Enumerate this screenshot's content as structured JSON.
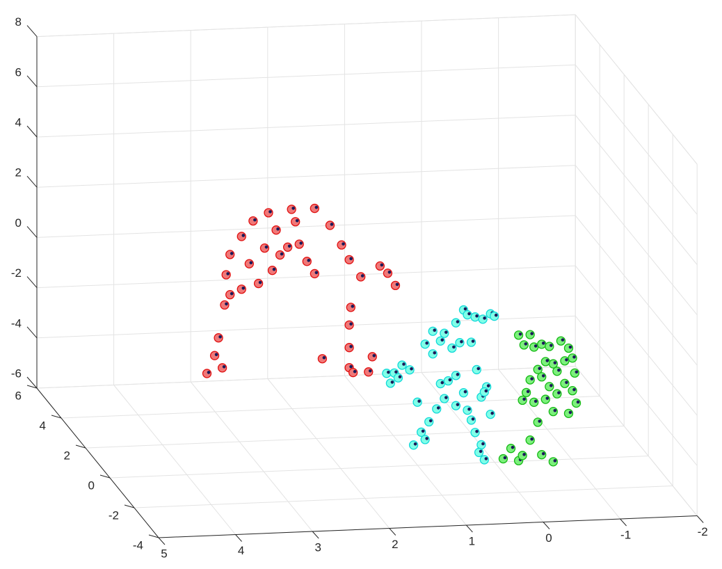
{
  "chart_data": {
    "type": "scatter",
    "title": "",
    "xlabel": "",
    "ylabel": "",
    "zlabel": "",
    "grid": true,
    "box": "open",
    "x_ticks": [
      "-2",
      "-1",
      "0",
      "1",
      "2",
      "3",
      "4",
      "5"
    ],
    "y_ticks": [
      "-4",
      "-2",
      "0",
      "2",
      "4",
      "6"
    ],
    "z_ticks": [
      "-6",
      "-4",
      "-2",
      "0",
      "2",
      "4",
      "6",
      "8"
    ],
    "xlim": [
      -2,
      5
    ],
    "ylim": [
      -4,
      6
    ],
    "zlim": [
      -6,
      8
    ],
    "colors": {
      "red_fill": "#f07878",
      "red_edge": "#e01010",
      "cyan_fill": "#80ffe8",
      "cyan_edge": "#10d8d8",
      "green_fill": "#7cf07c",
      "green_edge": "#14b814",
      "inner_marker": "#1a1a5a"
    },
    "series": [
      {
        "color": "red",
        "points": [
          [
            3.55,
            -2.6,
            5.6
          ],
          [
            3.35,
            -2.6,
            5.9
          ],
          [
            3.05,
            -2.6,
            6.0
          ],
          [
            2.75,
            -2.6,
            6.0
          ],
          [
            3.7,
            -2.6,
            5.0
          ],
          [
            3.85,
            -2.6,
            4.3
          ],
          [
            3.9,
            -2.6,
            3.5
          ],
          [
            3.85,
            -2.6,
            2.7
          ],
          [
            3.92,
            -2.6,
            2.3
          ],
          [
            4.0,
            -2.6,
            1.0
          ],
          [
            4.05,
            -2.6,
            0.3
          ],
          [
            4.15,
            -2.6,
            -0.4
          ],
          [
            3.25,
            -2.6,
            5.2
          ],
          [
            3.4,
            -2.6,
            4.5
          ],
          [
            3.6,
            -2.6,
            3.9
          ],
          [
            3.7,
            -2.6,
            2.9
          ],
          [
            3.1,
            -2.6,
            4.5
          ],
          [
            3.2,
            -2.6,
            4.2
          ],
          [
            3.3,
            -2.6,
            3.6
          ],
          [
            3.48,
            -2.6,
            3.1
          ],
          [
            3.0,
            -2.6,
            5.5
          ],
          [
            2.95,
            -2.6,
            4.6
          ],
          [
            2.85,
            -2.6,
            3.9
          ],
          [
            2.75,
            -2.6,
            3.4
          ],
          [
            2.55,
            -2.6,
            5.3
          ],
          [
            2.4,
            -2.6,
            4.5
          ],
          [
            2.3,
            -2.6,
            3.9
          ],
          [
            2.15,
            -2.6,
            3.2
          ],
          [
            2.28,
            -2.6,
            2.0
          ],
          [
            2.3,
            -2.6,
            1.3
          ],
          [
            2.3,
            -2.6,
            0.4
          ],
          [
            2.3,
            -2.6,
            -0.4
          ],
          [
            2.65,
            -2.6,
            0.0
          ],
          [
            2.0,
            -2.6,
            0.0
          ],
          [
            2.05,
            -2.6,
            -0.6
          ],
          [
            1.8,
            -2.6,
            3.3
          ],
          [
            1.7,
            -2.6,
            2.8
          ],
          [
            1.9,
            -2.6,
            3.6
          ],
          [
            3.95,
            -2.6,
            -0.2
          ],
          [
            2.25,
            -2.6,
            -0.6
          ]
        ]
      },
      {
        "color": "cyan",
        "points": [
          [
            1.45,
            -0.3,
            -2.1
          ],
          [
            1.35,
            -0.3,
            -2.1
          ],
          [
            1.25,
            -0.3,
            -1.8
          ],
          [
            1.15,
            -0.3,
            -2.0
          ],
          [
            1.3,
            -0.3,
            -2.3
          ],
          [
            1.4,
            -0.3,
            -2.5
          ],
          [
            0.95,
            -0.3,
            -1.0
          ],
          [
            0.85,
            -0.3,
            -0.5
          ],
          [
            0.7,
            -0.3,
            -0.6
          ],
          [
            0.55,
            -0.3,
            -0.2
          ],
          [
            0.45,
            -0.3,
            0.3
          ],
          [
            0.4,
            -0.3,
            0.1
          ],
          [
            0.3,
            -0.3,
            0.0
          ],
          [
            0.2,
            -0.3,
            -0.1
          ],
          [
            0.1,
            -0.3,
            0.1
          ],
          [
            0.05,
            -0.3,
            0.0
          ],
          [
            0.85,
            -0.3,
            -1.4
          ],
          [
            0.75,
            -0.3,
            -0.9
          ],
          [
            0.6,
            -0.3,
            -1.2
          ],
          [
            0.5,
            -0.3,
            -1.0
          ],
          [
            0.55,
            -0.3,
            -2.3
          ],
          [
            0.45,
            -0.3,
            -3.0
          ],
          [
            0.4,
            -0.3,
            -3.7
          ],
          [
            0.35,
            -0.3,
            -4.1
          ],
          [
            0.3,
            -0.3,
            -4.6
          ],
          [
            0.22,
            -0.3,
            -5.1
          ],
          [
            0.18,
            -0.3,
            -5.7
          ],
          [
            0.25,
            -0.3,
            -5.4
          ],
          [
            0.65,
            -0.3,
            -2.5
          ],
          [
            0.7,
            -0.3,
            -3.2
          ],
          [
            0.8,
            -0.3,
            -3.6
          ],
          [
            0.9,
            -0.3,
            -4.1
          ],
          [
            1.0,
            -0.3,
            -4.5
          ],
          [
            0.95,
            -0.3,
            -4.8
          ],
          [
            1.1,
            -0.3,
            -5.0
          ],
          [
            0.15,
            -0.3,
            -2.8
          ],
          [
            0.22,
            -0.3,
            -3.2
          ],
          [
            0.28,
            -0.3,
            -2.1
          ],
          [
            0.35,
            -0.3,
            -1.0
          ],
          [
            0.55,
            -0.3,
            -3.5
          ],
          [
            0.1,
            -0.3,
            -3.9
          ],
          [
            0.18,
            -0.3,
            -3.0
          ],
          [
            1.05,
            -0.3,
            -3.3
          ],
          [
            0.75,
            -0.3,
            -2.6
          ]
        ]
      },
      {
        "color": "green",
        "points": [
          [
            -0.55,
            1.5,
            -1.9
          ],
          [
            -0.7,
            1.5,
            -1.9
          ],
          [
            -0.62,
            1.5,
            -2.3
          ],
          [
            -0.75,
            1.5,
            -2.4
          ],
          [
            -0.85,
            1.5,
            -2.3
          ],
          [
            -0.95,
            1.5,
            -2.4
          ],
          [
            -1.1,
            1.5,
            -2.2
          ],
          [
            -1.2,
            1.5,
            -2.5
          ],
          [
            -1.25,
            1.5,
            -2.9
          ],
          [
            -1.15,
            1.5,
            -3.0
          ],
          [
            -1.0,
            1.5,
            -3.1
          ],
          [
            -0.9,
            1.5,
            -3.0
          ],
          [
            -0.8,
            1.5,
            -3.3
          ],
          [
            -0.7,
            1.5,
            -3.7
          ],
          [
            -0.65,
            1.5,
            -4.2
          ],
          [
            -0.6,
            1.5,
            -4.5
          ],
          [
            -0.85,
            1.5,
            -3.6
          ],
          [
            -0.95,
            1.5,
            -4.0
          ],
          [
            -1.05,
            1.5,
            -4.3
          ],
          [
            -1.15,
            1.5,
            -3.9
          ],
          [
            -1.25,
            1.5,
            -4.2
          ],
          [
            -1.3,
            1.5,
            -4.7
          ],
          [
            -1.2,
            1.5,
            -5.1
          ],
          [
            -1.0,
            1.5,
            -5.0
          ],
          [
            -0.8,
            1.5,
            -5.4
          ],
          [
            -0.7,
            1.5,
            -6.1
          ],
          [
            -0.45,
            1.5,
            -6.4
          ],
          [
            -0.35,
            1.5,
            -6.8
          ],
          [
            -0.55,
            1.5,
            -6.9
          ],
          [
            -0.85,
            1.5,
            -6.7
          ],
          [
            -1.0,
            1.5,
            -7.0
          ],
          [
            -0.75,
            1.5,
            -4.6
          ],
          [
            -0.9,
            1.5,
            -4.5
          ],
          [
            -1.05,
            1.5,
            -3.4
          ],
          [
            -1.28,
            1.5,
            -3.5
          ],
          [
            -0.6,
            1.5,
            -6.7
          ]
        ]
      }
    ]
  }
}
